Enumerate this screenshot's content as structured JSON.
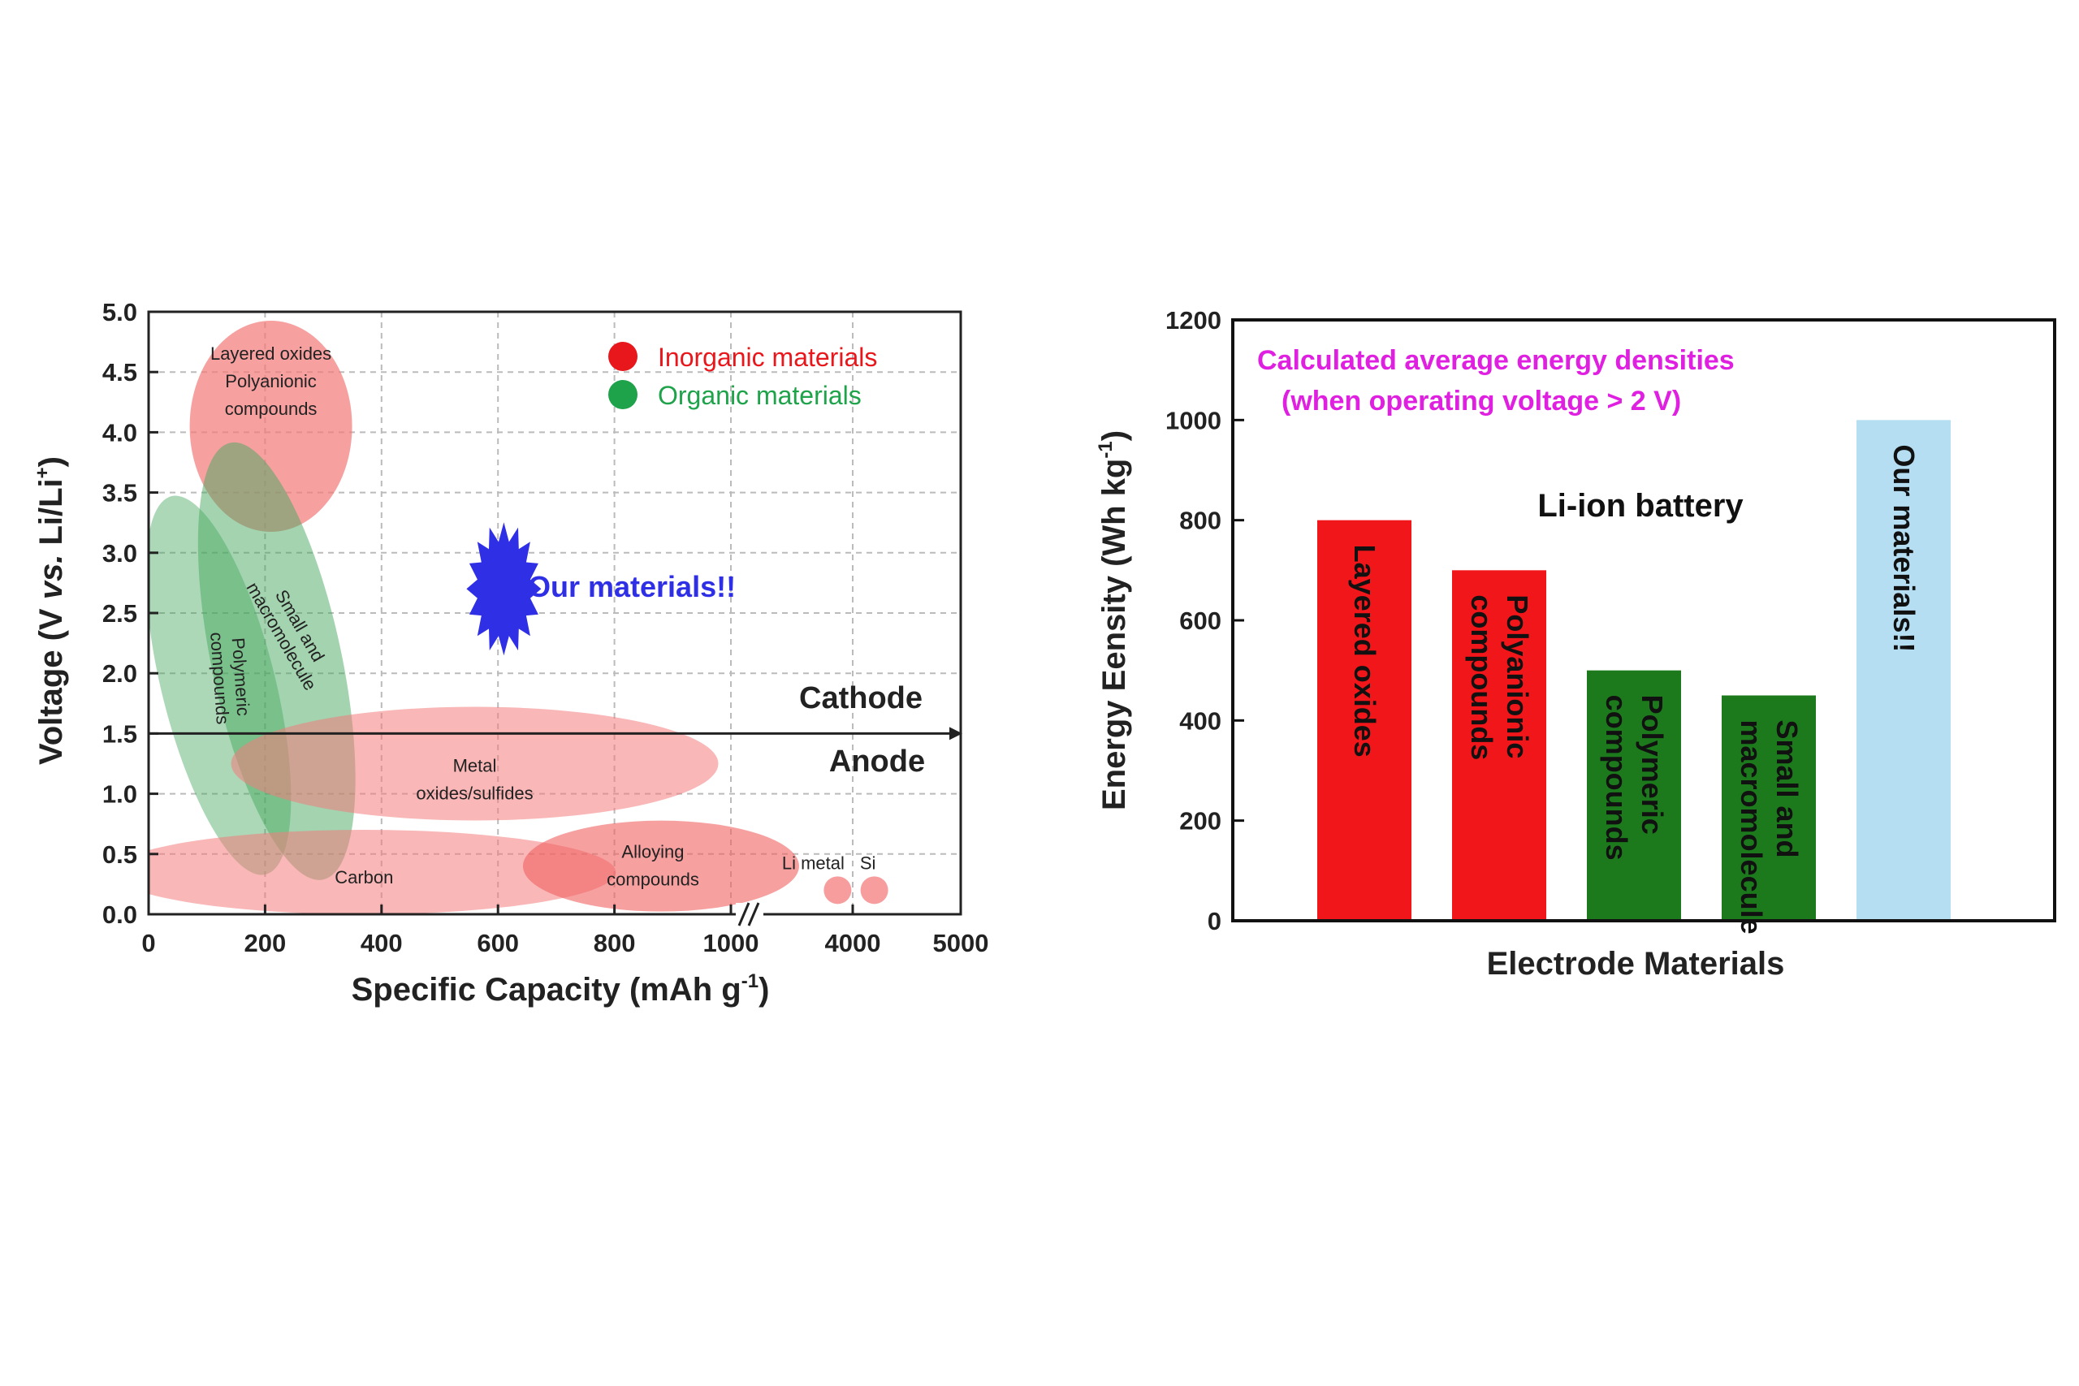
{
  "chart_data": [
    {
      "type": "scatter",
      "xlabel": "Specific Capacity (mAh g",
      "xlabel_sup": "-1",
      "xlabel_close": ")",
      "ylabel_pre": "Voltage (V ",
      "ylabel_vs": "vs.",
      "ylabel_post": " Li/Li",
      "ylabel_sup": "+",
      "ylabel_close": ")",
      "ylim": [
        0,
        5.0
      ],
      "y_ticks": [
        "0.0",
        "0.5",
        "1.0",
        "1.5",
        "2.0",
        "2.5",
        "3.0",
        "3.5",
        "4.0",
        "4.5",
        "5.0"
      ],
      "x_ticks": [
        {
          "value": 0,
          "label": "0"
        },
        {
          "value": 200,
          "label": "200"
        },
        {
          "value": 400,
          "label": "400"
        },
        {
          "value": 600,
          "label": "600"
        },
        {
          "value": 800,
          "label": "800"
        },
        {
          "value": 1000,
          "label": "1000"
        },
        {
          "value": 4000,
          "label": "4000"
        },
        {
          "value": 5000,
          "label": "5000"
        }
      ],
      "axis_break": "//",
      "grid": true,
      "legend": {
        "placement": "top-right",
        "items": [
          {
            "label": "Inorganic materials",
            "color": "#e8171c"
          },
          {
            "label": "Organic materials",
            "color": "#1ea34a"
          }
        ]
      },
      "divider_voltage": 1.5,
      "region_labels": {
        "cathode": "Cathode",
        "anode": "Anode"
      },
      "regions": [
        {
          "name": "Layered oxides / Polyanionic compounds",
          "label_lines": [
            "Layered oxides",
            "",
            "Polyanionic",
            "compounds"
          ],
          "class": "inorganic",
          "x": 210,
          "y": 4.05
        },
        {
          "name": "Polymeric compounds",
          "label_lines": [
            "Polymeric",
            "compounds"
          ],
          "class": "organic",
          "x": 120,
          "y": 1.9
        },
        {
          "name": "Small and macromolecule",
          "label_lines": [
            "Small and",
            "macromolecule"
          ],
          "class": "organic",
          "x": 220,
          "y": 2.1
        },
        {
          "name": "Metal oxides/sulfides",
          "label_lines": [
            "Metal",
            "oxides/sulfides"
          ],
          "class": "inorganic",
          "x": 560,
          "y": 1.25
        },
        {
          "name": "Carbon",
          "label_lines": [
            "Carbon"
          ],
          "class": "inorganic",
          "x": 370,
          "y": 0.35
        },
        {
          "name": "Alloying compounds",
          "label_lines": [
            "Alloying",
            "compounds"
          ],
          "class": "inorganic",
          "x": 880,
          "y": 0.4
        },
        {
          "name": "Li metal",
          "label_lines": [
            "Li metal"
          ],
          "class": "inorganic",
          "x": 3860,
          "y": 0.2
        },
        {
          "name": "Si",
          "label_lines": [
            "Si"
          ],
          "class": "inorganic",
          "x": 4200,
          "y": 0.2
        }
      ],
      "highlight": {
        "label": "Our materials!!",
        "color": "#2f2fe6",
        "x": 610,
        "y": 2.7
      }
    },
    {
      "type": "bar",
      "xlabel": "Electrode Materials",
      "ylabel": "Energy Eensity (Wh kg",
      "ylabel_sup": "-1",
      "ylabel_close": ")",
      "ylim": [
        0,
        1200
      ],
      "y_ticks": [
        "0",
        "200",
        "400",
        "600",
        "800",
        "1000",
        "1200"
      ],
      "annotation_lines": [
        "Calculated average energy densities",
        "(when operating voltage > 2 V)"
      ],
      "annotation_color": "#e020e0",
      "group_label": "Li-ion battery",
      "categories": [
        "Layered oxides",
        "Polyanionic compounds",
        "Polymeric compounds",
        "Small and macromolecule",
        "Our materials!!"
      ],
      "category_lines": [
        [
          "Layered oxides"
        ],
        [
          "Polyanionic",
          "compounds"
        ],
        [
          "Polymeric",
          "compounds"
        ],
        [
          "Small and",
          "macromolecule"
        ],
        [
          "Our materials!!"
        ]
      ],
      "values": [
        800,
        700,
        500,
        450,
        1000
      ],
      "colors": [
        "#f0161a",
        "#f0161a",
        "#1c7a1c",
        "#1c7a1c",
        "#b5def2"
      ],
      "label_colors": [
        "#111111",
        "#111111",
        "#111111",
        "#111111",
        "#1c2ed0"
      ]
    }
  ]
}
